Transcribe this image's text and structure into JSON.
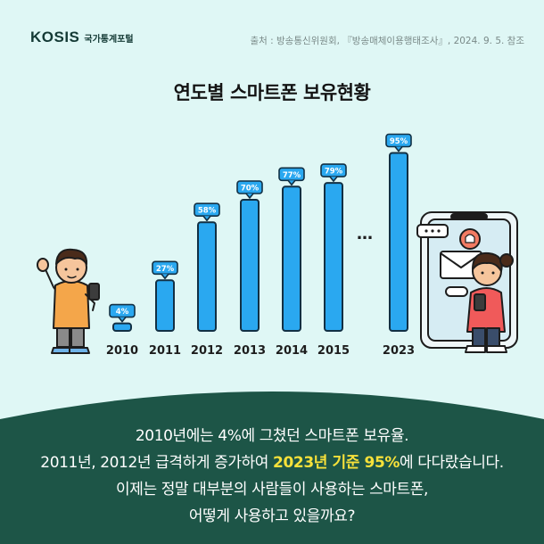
{
  "header": {
    "logo_mark": "KOSIS",
    "logo_sub": "국가통계포털",
    "source": "출처 : 방송통신위원회, 『방송매체이용행태조사』, 2024. 9. 5. 참조"
  },
  "colors": {
    "background": "#dff7f5",
    "bar": "#2aa8f0",
    "bar_stroke": "#123044",
    "bottom_panel": "#1d5547",
    "highlight": "#f7e13a"
  },
  "chart_data": {
    "type": "bar",
    "title": "연도별 스마트폰 보유현황",
    "categories": [
      "2010",
      "2011",
      "2012",
      "2013",
      "2014",
      "2015",
      "2023"
    ],
    "values": [
      4,
      27,
      58,
      70,
      77,
      79,
      95
    ],
    "value_labels": [
      "4%",
      "27%",
      "58%",
      "70%",
      "77%",
      "79%",
      "95%"
    ],
    "gap_marker": "…",
    "xlabel": "",
    "ylabel": "",
    "ylim": [
      0,
      100
    ],
    "grid": false,
    "legend": "none"
  },
  "caption": {
    "line1": "2010년에는 4%에 그쳤던 스마트폰 보유율.",
    "line2_pre": "2011년, 2012년 급격하게 증가하여 ",
    "line2_highlight": "2023년 기준 95%",
    "line2_post": "에 다다랐습니다.",
    "line3": "이제는 정말 대부분의 사람들이 사용하는 스마트폰,",
    "line4": "어떻게 사용하고 있을까요?"
  },
  "illustrations": {
    "left": "boy-with-phone",
    "right": "girl-with-phone-and-large-smartphone"
  }
}
